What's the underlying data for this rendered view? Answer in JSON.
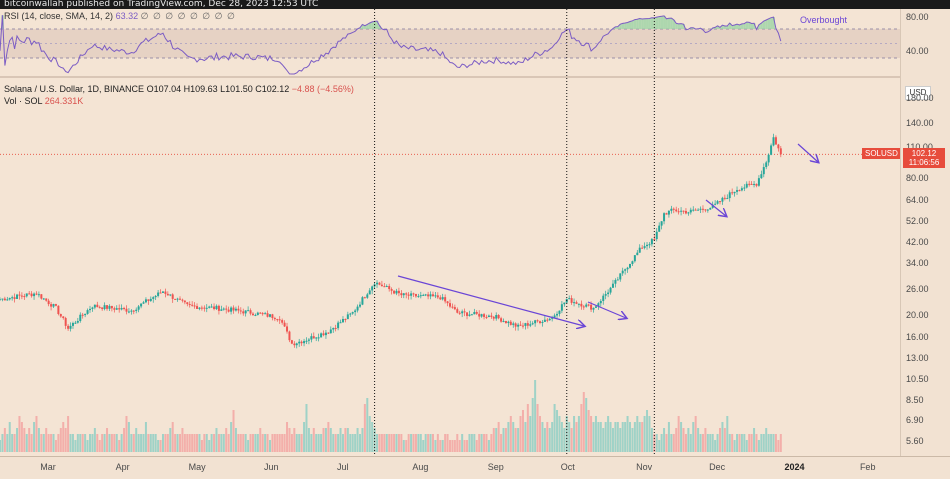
{
  "header": {
    "publisher": "bitcoinwallah published on TradingView.com, Dec 28, 2023 12:53 UTC"
  },
  "rsi": {
    "label": "RSI (14, close, SMA, 14, 2)",
    "value": "63.32",
    "placeholders": "∅ ∅ ∅ ∅ ∅ ∅ ∅ ∅",
    "levels": [
      "80.00",
      "40.00"
    ],
    "annotation": "Overbought",
    "line_color": "#7b5cc4"
  },
  "legend": {
    "symbol": "Solana / U.S. Dollar, 1D, BINANCE",
    "open": "O107.04",
    "high": "H109.63",
    "low": "L101.50",
    "close": "C102.12",
    "change": "−4.88 (−4.56%)",
    "volume_label": "Vol · SOL",
    "volume_value": "264.331K"
  },
  "price_axis": {
    "currency": "USD",
    "ticks": [
      "180.00",
      "140.00",
      "110.00",
      "80.00",
      "64.00",
      "52.00",
      "42.00",
      "34.00",
      "26.00",
      "20.00",
      "16.00",
      "13.00",
      "10.50",
      "8.50",
      "6.90",
      "5.60"
    ],
    "symbol_badge": "SOLUSD",
    "last_price": "102.12",
    "countdown": "11:06:56"
  },
  "time_axis": {
    "labels": [
      "Mar",
      "Apr",
      "May",
      "Jun",
      "Jul",
      "Aug",
      "Sep",
      "Oct",
      "Nov",
      "Dec",
      "2024",
      "Feb"
    ]
  },
  "colors": {
    "up": "#26a69a",
    "down": "#ef5350",
    "arrow": "#6a45d6",
    "last_price": "#e74c3c",
    "background": "#f4e4d4"
  },
  "chart_data": {
    "type": "candlestick",
    "symbol": "SOLUSD",
    "scale": "log",
    "x_range": [
      "2023-02-10",
      "2024-02-15"
    ],
    "y_range": [
      5,
      200
    ],
    "close_series": [
      {
        "date": "2023-02-10",
        "close": 23.5
      },
      {
        "date": "2023-02-25",
        "close": 25.0
      },
      {
        "date": "2023-03-05",
        "close": 21.5
      },
      {
        "date": "2023-03-10",
        "close": 17.5
      },
      {
        "date": "2023-03-20",
        "close": 22.0
      },
      {
        "date": "2023-04-05",
        "close": 21.0
      },
      {
        "date": "2023-04-18",
        "close": 25.5
      },
      {
        "date": "2023-04-28",
        "close": 22.0
      },
      {
        "date": "2023-05-10",
        "close": 21.5
      },
      {
        "date": "2023-05-25",
        "close": 20.5
      },
      {
        "date": "2023-06-05",
        "close": 19.5
      },
      {
        "date": "2023-06-10",
        "close": 15.0
      },
      {
        "date": "2023-06-15",
        "close": 15.5
      },
      {
        "date": "2023-06-25",
        "close": 17.0
      },
      {
        "date": "2023-07-05",
        "close": 20.5
      },
      {
        "date": "2023-07-14",
        "close": 28.0
      },
      {
        "date": "2023-07-25",
        "close": 24.5
      },
      {
        "date": "2023-08-10",
        "close": 24.0
      },
      {
        "date": "2023-08-17",
        "close": 20.5
      },
      {
        "date": "2023-09-01",
        "close": 19.8
      },
      {
        "date": "2023-09-11",
        "close": 17.8
      },
      {
        "date": "2023-09-25",
        "close": 19.5
      },
      {
        "date": "2023-10-01",
        "close": 23.5
      },
      {
        "date": "2023-10-12",
        "close": 21.5
      },
      {
        "date": "2023-10-20",
        "close": 27.0
      },
      {
        "date": "2023-10-25",
        "close": 32.0
      },
      {
        "date": "2023-11-01",
        "close": 40.0
      },
      {
        "date": "2023-11-06",
        "close": 43.0
      },
      {
        "date": "2023-11-10",
        "close": 56.0
      },
      {
        "date": "2023-11-14",
        "close": 58.0
      },
      {
        "date": "2023-11-20",
        "close": 57.0
      },
      {
        "date": "2023-11-30",
        "close": 60.0
      },
      {
        "date": "2023-12-10",
        "close": 72.0
      },
      {
        "date": "2023-12-18",
        "close": 76.0
      },
      {
        "date": "2023-12-22",
        "close": 95.0
      },
      {
        "date": "2023-12-25",
        "close": 121.0
      },
      {
        "date": "2023-12-28",
        "close": 102.12
      }
    ],
    "volume_relative": [
      2,
      3,
      4,
      3,
      5,
      3,
      3,
      4,
      6,
      5,
      4,
      3,
      4,
      3,
      5,
      6,
      4,
      3,
      3,
      4,
      3,
      3,
      3,
      2,
      3,
      4,
      5,
      4,
      6,
      3,
      3,
      2,
      3,
      3,
      3,
      3,
      2,
      3,
      3,
      4,
      3,
      2,
      3,
      3,
      4,
      3,
      3,
      3,
      3,
      2,
      3,
      4,
      6,
      5,
      3,
      3,
      4,
      3,
      3,
      3,
      5,
      3,
      3,
      3,
      3,
      2,
      2,
      3,
      3,
      3,
      4,
      5,
      3,
      3,
      3,
      4,
      3,
      3,
      3,
      3,
      3,
      3,
      3,
      2,
      3,
      3,
      2,
      3,
      3,
      4,
      3,
      3,
      3,
      4,
      3,
      5,
      7,
      4,
      3,
      3,
      3,
      3,
      2,
      3,
      3,
      3,
      3,
      4,
      3,
      3,
      3,
      2,
      3,
      3,
      3,
      3,
      3,
      3,
      5,
      4,
      3,
      4,
      3,
      3,
      3,
      5,
      8,
      4,
      3,
      4,
      3,
      3,
      3,
      4,
      4,
      5,
      4,
      3,
      3,
      3,
      4,
      3,
      4,
      4,
      3,
      3,
      3,
      4,
      3,
      4,
      8,
      9,
      6,
      5,
      4,
      3,
      3,
      3,
      3,
      3,
      3,
      3,
      3,
      3,
      3,
      3,
      2,
      2,
      3,
      3,
      3,
      3,
      3,
      3,
      2,
      3,
      3,
      3,
      3,
      2,
      3,
      2,
      2,
      3,
      3,
      2,
      2,
      2,
      3,
      2,
      3,
      2,
      2,
      3,
      3,
      3,
      2,
      3,
      3,
      3,
      3,
      2,
      3,
      4,
      4,
      5,
      3,
      4,
      4,
      5,
      6,
      5,
      4,
      4,
      6,
      7,
      5,
      8,
      6,
      9,
      12,
      8,
      6,
      5,
      4,
      5,
      4,
      5,
      8,
      7,
      6,
      5,
      4,
      6,
      5,
      4,
      6,
      5,
      6,
      8,
      10,
      9,
      7,
      6,
      5,
      6,
      5,
      5,
      4,
      5,
      6,
      5,
      4,
      5,
      5,
      4,
      5,
      5,
      6,
      5,
      4,
      5,
      6,
      5,
      5,
      6,
      7,
      6,
      4,
      3,
      3
    ],
    "rsi_levels": [
      80,
      40
    ],
    "rsi_last": 63.32,
    "markers": [
      "2023-07-14",
      "2023-10-01",
      "2023-11-06"
    ]
  }
}
